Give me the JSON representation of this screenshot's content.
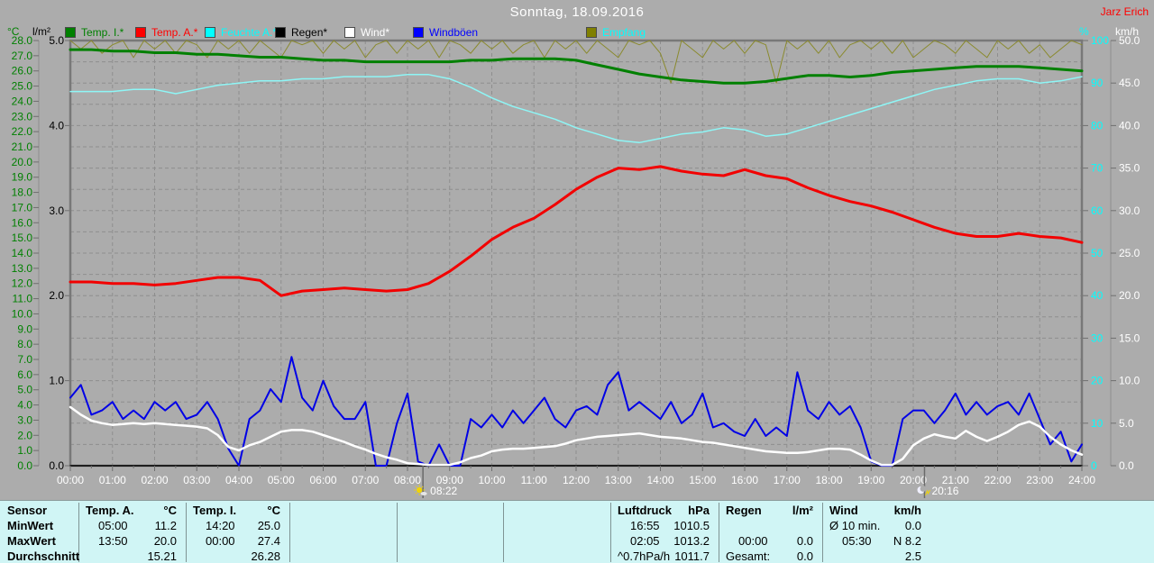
{
  "header": {
    "title": "Sonntag, 18.09.2016",
    "owner": "Jarz Erich"
  },
  "legend": {
    "items": [
      {
        "label": "Temp. I.*",
        "color": "#008000",
        "text_color": "#008000"
      },
      {
        "label": "Temp. A.*",
        "color": "#ff0000",
        "text_color": "#ff0000"
      },
      {
        "label": "Feuchte A.*",
        "color": "#00ffff",
        "text_color": "#00ffff"
      },
      {
        "label": "Regen*",
        "color": "#000000",
        "text_color": "#000000"
      },
      {
        "label": "Wind*",
        "color": "#ffffff",
        "text_color": "#ffffff"
      },
      {
        "label": "Windböen",
        "color": "#0000ff",
        "text_color": "#0000ff"
      },
      {
        "label": "Empfang",
        "color": "#808000",
        "text_color": "#00ffff"
      }
    ]
  },
  "chart_data": {
    "type": "line",
    "title": "Sonntag, 18.09.2016",
    "x_range_hours": [
      0,
      24
    ],
    "grid": "dashed",
    "axes": {
      "c": {
        "unit": "°C",
        "min": 0,
        "max": 28,
        "labels": [
          "28.0",
          "27.0",
          "26.0",
          "25.0",
          "24.0",
          "23.0",
          "22.0",
          "21.0",
          "20.0",
          "19.0",
          "18.0",
          "17.0",
          "16.0",
          "15.0",
          "14.0",
          "13.0",
          "12.0",
          "11.0",
          "10.0",
          "9.0",
          "8.0",
          "7.0",
          "6.0",
          "5.0",
          "4.0",
          "3.0",
          "2.0",
          "1.0",
          "0.0"
        ]
      },
      "lm2": {
        "unit": "l/m²",
        "min": 0,
        "max": 5,
        "labels": [
          "5.0",
          "4.0",
          "3.0",
          "2.0",
          "1.0",
          "0.0"
        ]
      },
      "pct": {
        "unit": "%",
        "min": 0,
        "max": 100,
        "labels": [
          "100",
          "90",
          "80",
          "70",
          "60",
          "50",
          "40",
          "30",
          "20",
          "10",
          "0"
        ]
      },
      "kmh": {
        "unit": "km/h",
        "min": 0,
        "max": 50,
        "labels": [
          "50.0",
          "45.0",
          "40.0",
          "35.0",
          "30.0",
          "25.0",
          "20.0",
          "15.0",
          "10.0",
          "5.0",
          "0.0"
        ]
      }
    },
    "x_labels": [
      "00:00",
      "01:00",
      "02:00",
      "03:00",
      "04:00",
      "05:00",
      "06:00",
      "07:00",
      "08:00",
      "09:00",
      "10:00",
      "11:00",
      "12:00",
      "13:00",
      "14:00",
      "15:00",
      "16:00",
      "17:00",
      "18:00",
      "19:00",
      "20:00",
      "21:00",
      "22:00",
      "23:00",
      "24:00"
    ],
    "markers": [
      {
        "time": "08:22",
        "icon": "sunrise"
      },
      {
        "time": "20:16",
        "icon": "sunset"
      }
    ],
    "series": [
      {
        "id": "empfang",
        "name": "Empfang",
        "axis": "pct",
        "color": "#8a8a2e",
        "width": 1,
        "interval": 0.25,
        "values": [
          100,
          98,
          100,
          97,
          99,
          100,
          96,
          100,
          98,
          100,
          97,
          100,
          99,
          96,
          100,
          98,
          100,
          97,
          100,
          98,
          96,
          100,
          99,
          100,
          97,
          100,
          98,
          100,
          96,
          99,
          100,
          97,
          100,
          98,
          100,
          96,
          100,
          99,
          97,
          100,
          98,
          100,
          97,
          99,
          100,
          96,
          100,
          98,
          100,
          97,
          100,
          98,
          96,
          100,
          99,
          100,
          97,
          90,
          100,
          98,
          96,
          100,
          98,
          100,
          97,
          100,
          99,
          90,
          100,
          98,
          100,
          97,
          100,
          96,
          99,
          100,
          98,
          100,
          97,
          100,
          96,
          98,
          100,
          99,
          97,
          100,
          98,
          96,
          100,
          98,
          100,
          97,
          99,
          96,
          98,
          100,
          99
        ]
      },
      {
        "id": "temp_i",
        "name": "Temp. I.",
        "axis": "c",
        "color": "#008000",
        "width": 3,
        "interval": 0.5,
        "values": [
          27.4,
          27.4,
          27.3,
          27.3,
          27.2,
          27.2,
          27.1,
          27.1,
          27.0,
          26.9,
          26.9,
          26.8,
          26.7,
          26.7,
          26.6,
          26.6,
          26.6,
          26.6,
          26.6,
          26.7,
          26.7,
          26.8,
          26.8,
          26.8,
          26.7,
          26.4,
          26.1,
          25.8,
          25.6,
          25.4,
          25.3,
          25.2,
          25.2,
          25.3,
          25.5,
          25.7,
          25.7,
          25.6,
          25.7,
          25.9,
          26.0,
          26.1,
          26.2,
          26.3,
          26.3,
          26.3,
          26.2,
          26.1,
          26.0
        ]
      },
      {
        "id": "feuchte",
        "name": "Feuchte A.",
        "axis": "pct",
        "color": "#8ef6f6",
        "width": 1.5,
        "interval": 0.5,
        "values": [
          88,
          88,
          88,
          88.5,
          88.5,
          87.5,
          88.5,
          89.5,
          90,
          90.5,
          90.5,
          91,
          91,
          91.5,
          91.5,
          91.5,
          92,
          92,
          91,
          89,
          86.5,
          84.5,
          83,
          81.5,
          79.5,
          78,
          76.5,
          76,
          77,
          78,
          78.5,
          79.5,
          79,
          77.5,
          78,
          79.5,
          81,
          82.5,
          84,
          85.5,
          87,
          88.5,
          89.5,
          90.5,
          91,
          91,
          90,
          90.5,
          91.5
        ]
      },
      {
        "id": "temp_a",
        "name": "Temp. A.",
        "axis": "c",
        "color": "#f20000",
        "width": 3,
        "interval": 0.5,
        "values": [
          12.1,
          12.1,
          12.0,
          12.0,
          11.9,
          12.0,
          12.2,
          12.4,
          12.4,
          12.2,
          11.2,
          11.5,
          11.6,
          11.7,
          11.6,
          11.5,
          11.6,
          12.0,
          12.8,
          13.8,
          14.9,
          15.7,
          16.3,
          17.2,
          18.2,
          19.0,
          19.6,
          19.5,
          19.7,
          19.4,
          19.2,
          19.1,
          19.5,
          19.1,
          18.9,
          18.3,
          17.8,
          17.4,
          17.1,
          16.7,
          16.2,
          15.7,
          15.3,
          15.1,
          15.1,
          15.3,
          15.1,
          15.0,
          14.7
        ]
      },
      {
        "id": "regen",
        "name": "Regen",
        "axis": "lm2",
        "color": "#000000",
        "width": 1.5,
        "interval": 12,
        "values": [
          0,
          0,
          0
        ]
      },
      {
        "id": "windboeen",
        "name": "Windböen",
        "axis": "kmh",
        "color": "#0000e6",
        "width": 2,
        "interval": 0.25,
        "values": [
          8.0,
          9.5,
          6.0,
          6.5,
          7.5,
          5.5,
          6.5,
          5.5,
          7.5,
          6.5,
          7.5,
          5.5,
          6.0,
          7.5,
          5.5,
          2.0,
          0.0,
          5.5,
          6.5,
          9.0,
          7.5,
          12.8,
          8.0,
          6.5,
          10.0,
          7.0,
          5.5,
          5.5,
          7.5,
          0.0,
          0.0,
          5.0,
          8.5,
          0.5,
          0.0,
          2.5,
          0.0,
          0.0,
          5.5,
          4.5,
          6.0,
          4.5,
          6.5,
          5.0,
          6.5,
          8.0,
          5.5,
          4.5,
          6.5,
          7.0,
          6.0,
          9.5,
          11.0,
          6.5,
          7.5,
          6.5,
          5.5,
          7.5,
          5.0,
          6.0,
          8.5,
          4.5,
          5.0,
          4.0,
          3.5,
          5.5,
          3.5,
          4.5,
          3.5,
          11.0,
          6.5,
          5.5,
          7.5,
          6.0,
          7.0,
          4.5,
          0.5,
          0.0,
          0.0,
          5.5,
          6.5,
          6.5,
          5.0,
          6.5,
          8.5,
          6.0,
          7.5,
          6.0,
          7.0,
          7.5,
          6.0,
          8.5,
          5.5,
          2.5,
          4.0,
          0.5,
          2.5
        ]
      },
      {
        "id": "wind",
        "name": "Wind",
        "axis": "kmh",
        "color": "#ffffff",
        "width": 2.5,
        "interval": 0.25,
        "values": [
          6.9,
          6.0,
          5.3,
          5.0,
          4.8,
          4.9,
          5.0,
          4.9,
          5.0,
          4.9,
          4.8,
          4.7,
          4.6,
          4.4,
          3.6,
          2.2,
          1.8,
          2.4,
          2.8,
          3.4,
          4.0,
          4.2,
          4.2,
          4.0,
          3.6,
          3.2,
          2.8,
          2.3,
          1.9,
          1.4,
          1.0,
          0.7,
          0.3,
          0.2,
          0.1,
          0.1,
          0.1,
          0.4,
          0.9,
          1.2,
          1.7,
          1.9,
          2.0,
          2.0,
          2.1,
          2.2,
          2.3,
          2.6,
          3.0,
          3.2,
          3.4,
          3.5,
          3.6,
          3.7,
          3.8,
          3.6,
          3.4,
          3.3,
          3.2,
          3.0,
          2.8,
          2.7,
          2.5,
          2.3,
          2.1,
          1.9,
          1.7,
          1.6,
          1.5,
          1.5,
          1.6,
          1.8,
          2.0,
          2.0,
          1.9,
          1.3,
          0.6,
          0.1,
          0.1,
          0.8,
          2.4,
          3.2,
          3.7,
          3.4,
          3.2,
          4.1,
          3.4,
          2.9,
          3.4,
          4.0,
          4.8,
          5.2,
          4.6,
          3.4,
          2.5,
          1.8,
          1.3
        ]
      }
    ]
  },
  "table": {
    "row_labels": [
      "Sensor",
      "MinWert",
      "MaxWert",
      "Durchschnitt"
    ],
    "columns": [
      {
        "name": "Temp. A.",
        "unit": "°C",
        "min": [
          "05:00",
          "11.2"
        ],
        "max": [
          "13:50",
          "20.0"
        ],
        "avg": [
          "",
          "15.21"
        ]
      },
      {
        "name": "Temp. I.",
        "unit": "°C",
        "min": [
          "14:20",
          "25.0"
        ],
        "max": [
          "00:00",
          "27.4"
        ],
        "avg": [
          "",
          "26.28"
        ]
      },
      {
        "name": "",
        "unit": "",
        "min": [
          "",
          ""
        ],
        "max": [
          "",
          ""
        ],
        "avg": [
          "",
          ""
        ]
      },
      {
        "name": "",
        "unit": "",
        "min": [
          "",
          ""
        ],
        "max": [
          "",
          ""
        ],
        "avg": [
          "",
          ""
        ]
      },
      {
        "name": "",
        "unit": "",
        "min": [
          "",
          ""
        ],
        "max": [
          "",
          ""
        ],
        "avg": [
          "",
          ""
        ]
      },
      {
        "name": "Luftdruck",
        "unit": "hPa",
        "min": [
          "16:55",
          "1010.5"
        ],
        "max": [
          "02:05",
          "1013.2"
        ],
        "avg": [
          "^0.7hPa/h",
          "1011.7"
        ]
      },
      {
        "name": "Regen",
        "unit": "l/m²",
        "min": [
          "",
          ""
        ],
        "max": [
          "00:00",
          "0.0"
        ],
        "avg": [
          "Gesamt:",
          "0.0"
        ]
      },
      {
        "name": "Wind",
        "unit": "km/h",
        "min": [
          "Ø 10 min.",
          "0.0"
        ],
        "max": [
          "05:30",
          "N 8.2"
        ],
        "avg": [
          "",
          "2.5"
        ]
      }
    ]
  }
}
